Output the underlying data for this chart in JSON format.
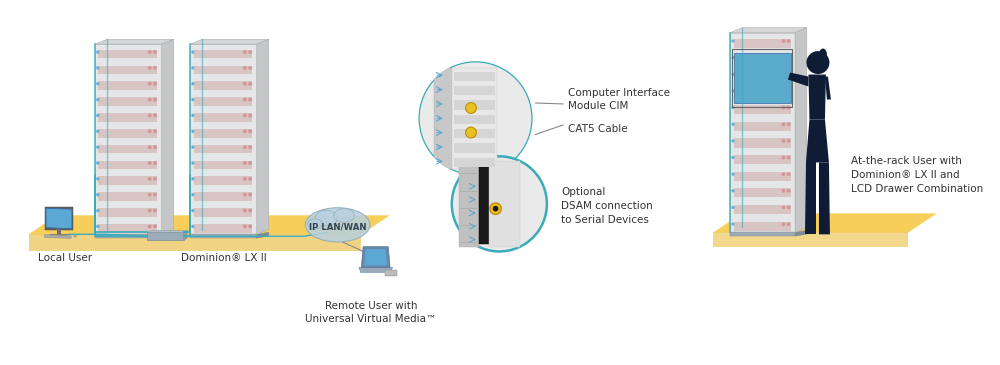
{
  "bg_color": "#ffffff",
  "yellow": "#F5C842",
  "yellow_dark": "#E8B830",
  "teal": "#3AACB8",
  "blue_light": "#5BA8D4",
  "blue_med": "#4488BB",
  "gray_rack": "#E0E2E4",
  "gray_rack_top": "#D0D2D4",
  "gray_rack_side": "#C0C2C4",
  "stripe_red": "#D4A8A8",
  "navy": "#0F1C35",
  "gray_kvm": "#9AACB8",
  "gray_kvm_dark": "#7A8C98",
  "cloud_fill": "#B8D0E0",
  "cloud_edge": "#8aaabb",
  "label_color": "#555555",
  "label_dark": "#333333",
  "gold": "#E8C020",
  "gold_dark": "#C09000",
  "circle_bg": "#F0F0F0",
  "labels": {
    "local_user": "Local User",
    "dominion": "Dominion® LX II",
    "ip_lan_wan": "IP LAN/WAN",
    "remote_user": "Remote User with\nUniversal Virtual Media™",
    "cim_label1": "Computer Interface",
    "cim_label2": "Module CIM",
    "cat5_label": "CAT5 Cable",
    "optional_label": "Optional\nDSAM connection\nto Serial Devices",
    "rack_user_label": "At-the-rack User with\nDominion® LX II and\nLCD Drawer Combination"
  }
}
